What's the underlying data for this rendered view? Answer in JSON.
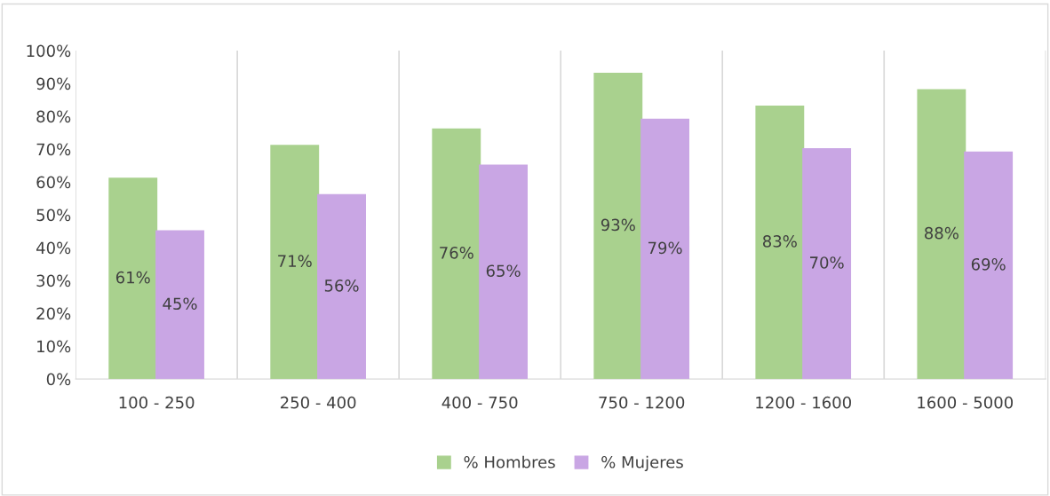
{
  "chart_data": {
    "type": "bar",
    "categories": [
      "100 - 250",
      "250 - 400",
      "400 - 750",
      "750 - 1200",
      "1200 - 1600",
      "1600 - 5000"
    ],
    "series": [
      {
        "name": "% Hombres",
        "color": "#a9d18e",
        "values": [
          61,
          71,
          76,
          93,
          83,
          88
        ],
        "value_labels": [
          "61%",
          "71%",
          "76%",
          "93%",
          "83%",
          "88%"
        ]
      },
      {
        "name": "% Mujeres",
        "color": "#c9a6e4",
        "values": [
          45,
          56,
          65,
          79,
          70,
          69
        ],
        "value_labels": [
          "45%",
          "56%",
          "65%",
          "79%",
          "70%",
          "69%"
        ]
      }
    ],
    "ylim": [
      0,
      100
    ],
    "yticks": [
      {
        "value": 0,
        "label": "0%"
      },
      {
        "value": 10,
        "label": "10%"
      },
      {
        "value": 20,
        "label": "20%"
      },
      {
        "value": 30,
        "label": "30%"
      },
      {
        "value": 40,
        "label": "40%"
      },
      {
        "value": 50,
        "label": "50%"
      },
      {
        "value": 60,
        "label": "60%"
      },
      {
        "value": 70,
        "label": "70%"
      },
      {
        "value": 80,
        "label": "80%"
      },
      {
        "value": 90,
        "label": "90%"
      },
      {
        "value": 100,
        "label": "100%"
      }
    ],
    "grid": "x",
    "legend": "bottom"
  }
}
